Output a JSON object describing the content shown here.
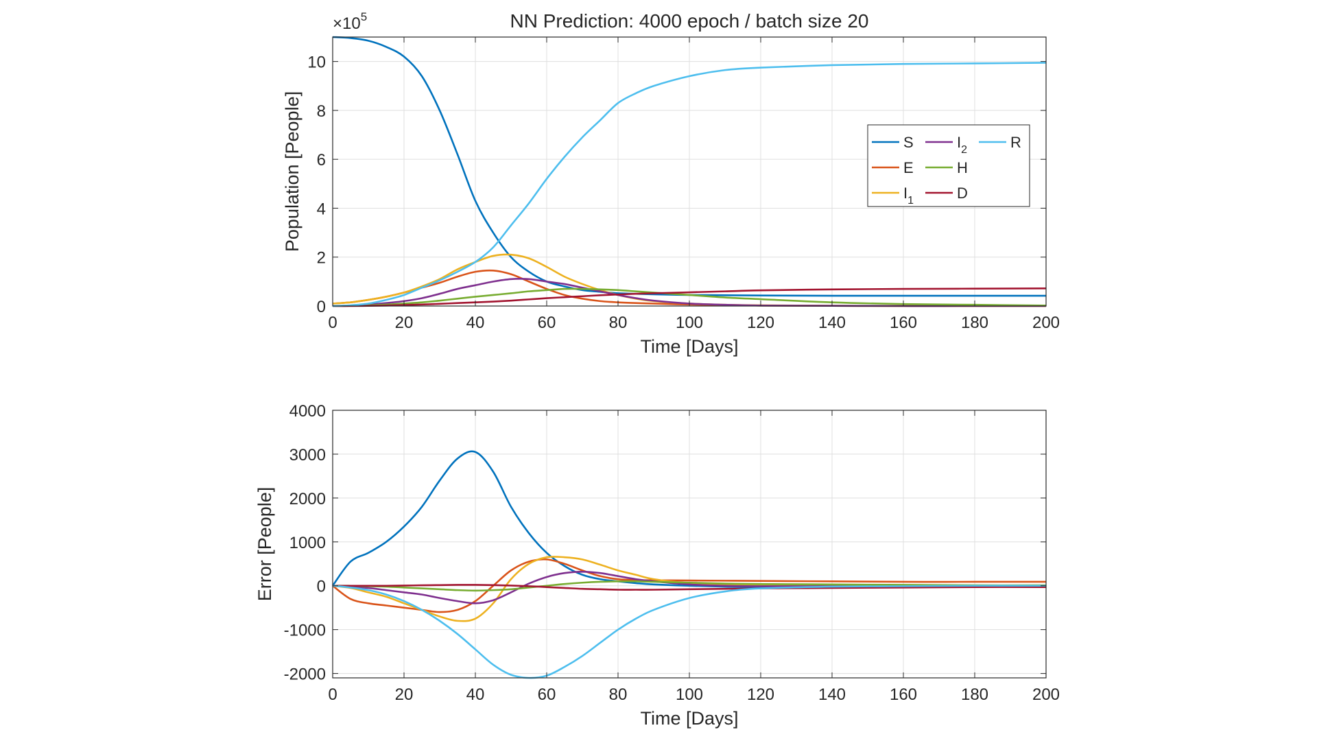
{
  "chart_data": [
    {
      "type": "line",
      "title": "NN Prediction: 4000 epoch / batch size 20",
      "xlabel": "Time [Days]",
      "ylabel": "Population [People]",
      "y_exponent_base": "×10",
      "y_exponent_power": "5",
      "xlim": [
        0,
        200
      ],
      "ylim": [
        0,
        11
      ],
      "xticks": [
        "0",
        "20",
        "40",
        "60",
        "80",
        "100",
        "120",
        "140",
        "160",
        "180",
        "200"
      ],
      "yticks": [
        "0",
        "2",
        "4",
        "6",
        "8",
        "10"
      ],
      "grid": true,
      "legend_position": "upper-right",
      "legend_columns": 3,
      "x": [
        0,
        5,
        10,
        15,
        20,
        25,
        30,
        35,
        40,
        45,
        50,
        55,
        60,
        65,
        70,
        75,
        80,
        85,
        90,
        100,
        110,
        120,
        140,
        160,
        180,
        200
      ],
      "series": [
        {
          "name": "S",
          "color": "#0072BD",
          "values": [
            11.0,
            10.96,
            10.85,
            10.6,
            10.2,
            9.4,
            8.0,
            6.2,
            4.3,
            3.0,
            2.0,
            1.4,
            1.0,
            0.8,
            0.65,
            0.58,
            0.52,
            0.5,
            0.48,
            0.45,
            0.44,
            0.43,
            0.42,
            0.42,
            0.42,
            0.42
          ]
        },
        {
          "name": "E",
          "color": "#D95319",
          "values": [
            0.1,
            0.15,
            0.25,
            0.38,
            0.55,
            0.75,
            0.95,
            1.2,
            1.4,
            1.45,
            1.3,
            1.0,
            0.7,
            0.45,
            0.3,
            0.2,
            0.15,
            0.12,
            0.1,
            0.06,
            0.04,
            0.02,
            0.01,
            0,
            0,
            0
          ]
        },
        {
          "name": "I",
          "name_sub": "1",
          "color": "#EDB120",
          "values": [
            0.1,
            0.15,
            0.25,
            0.38,
            0.55,
            0.8,
            1.1,
            1.5,
            1.8,
            2.05,
            2.1,
            1.95,
            1.6,
            1.2,
            0.9,
            0.65,
            0.45,
            0.3,
            0.2,
            0.1,
            0.05,
            0.03,
            0.01,
            0,
            0,
            0
          ]
        },
        {
          "name": "I",
          "name_sub": "2",
          "color": "#7E2F8E",
          "values": [
            0,
            0.02,
            0.06,
            0.12,
            0.2,
            0.32,
            0.5,
            0.7,
            0.85,
            1.0,
            1.1,
            1.1,
            1.0,
            0.9,
            0.75,
            0.6,
            0.45,
            0.32,
            0.22,
            0.1,
            0.05,
            0.02,
            0.01,
            0,
            0,
            0
          ]
        },
        {
          "name": "H",
          "color": "#77AC30",
          "values": [
            0,
            0.01,
            0.03,
            0.06,
            0.1,
            0.15,
            0.22,
            0.3,
            0.38,
            0.45,
            0.52,
            0.6,
            0.65,
            0.7,
            0.7,
            0.68,
            0.65,
            0.6,
            0.55,
            0.45,
            0.35,
            0.28,
            0.15,
            0.08,
            0.05,
            0.02
          ]
        },
        {
          "name": "D",
          "color": "#A2142F",
          "values": [
            0,
            0,
            0.01,
            0.02,
            0.04,
            0.06,
            0.09,
            0.12,
            0.15,
            0.18,
            0.22,
            0.27,
            0.32,
            0.36,
            0.4,
            0.44,
            0.47,
            0.5,
            0.52,
            0.56,
            0.6,
            0.64,
            0.68,
            0.7,
            0.71,
            0.72
          ]
        },
        {
          "name": "R",
          "color": "#4DBEEE",
          "values": [
            0,
            0.03,
            0.1,
            0.25,
            0.45,
            0.75,
            1.05,
            1.4,
            1.8,
            2.4,
            3.3,
            4.2,
            5.2,
            6.1,
            6.9,
            7.6,
            8.3,
            8.7,
            9.0,
            9.4,
            9.65,
            9.75,
            9.85,
            9.9,
            9.92,
            9.95
          ]
        }
      ]
    },
    {
      "type": "line",
      "xlabel": "Time [Days]",
      "ylabel": "Error [People]",
      "xlim": [
        0,
        200
      ],
      "ylim": [
        -2100,
        4000
      ],
      "xticks": [
        "0",
        "20",
        "40",
        "60",
        "80",
        "100",
        "120",
        "140",
        "160",
        "180",
        "200"
      ],
      "yticks": [
        "-2000",
        "-1000",
        "0",
        "1000",
        "2000",
        "3000",
        "4000"
      ],
      "grid": true,
      "x": [
        0,
        5,
        10,
        15,
        20,
        25,
        30,
        35,
        40,
        45,
        50,
        55,
        60,
        65,
        70,
        75,
        80,
        85,
        90,
        100,
        110,
        120,
        140,
        160,
        180,
        200
      ],
      "series": [
        {
          "name": "S",
          "color": "#0072BD",
          "values": [
            0,
            550,
            750,
            1000,
            1350,
            1800,
            2400,
            2900,
            3050,
            2600,
            1800,
            1200,
            750,
            450,
            250,
            150,
            100,
            60,
            30,
            0,
            -20,
            -30,
            -20,
            -10,
            0,
            0
          ]
        },
        {
          "name": "E",
          "color": "#D95319",
          "values": [
            0,
            -300,
            -400,
            -450,
            -500,
            -550,
            -600,
            -550,
            -350,
            0,
            350,
            550,
            600,
            500,
            350,
            220,
            150,
            130,
            125,
            120,
            115,
            110,
            100,
            90,
            90,
            90
          ]
        },
        {
          "name": "I",
          "name_sub": "1",
          "color": "#EDB120",
          "values": [
            0,
            -50,
            -150,
            -250,
            -400,
            -550,
            -700,
            -800,
            -750,
            -400,
            150,
            500,
            650,
            650,
            600,
            480,
            350,
            250,
            150,
            60,
            20,
            10,
            0,
            0,
            0,
            0
          ]
        },
        {
          "name": "I",
          "name_sub": "2",
          "color": "#7E2F8E",
          "values": [
            0,
            -20,
            -50,
            -100,
            -150,
            -200,
            -280,
            -350,
            -400,
            -330,
            -150,
            50,
            200,
            290,
            320,
            290,
            220,
            150,
            100,
            30,
            0,
            -10,
            -10,
            -10,
            -10,
            -10
          ]
        },
        {
          "name": "H",
          "color": "#77AC30",
          "values": [
            0,
            0,
            -10,
            -20,
            -40,
            -60,
            -80,
            -100,
            -110,
            -100,
            -80,
            -40,
            0,
            40,
            70,
            90,
            100,
            100,
            90,
            70,
            50,
            40,
            30,
            20,
            10,
            10
          ]
        },
        {
          "name": "D",
          "color": "#A2142F",
          "values": [
            0,
            0,
            0,
            0,
            5,
            10,
            15,
            20,
            20,
            15,
            5,
            -10,
            -30,
            -50,
            -70,
            -80,
            -90,
            -90,
            -90,
            -80,
            -70,
            -60,
            -50,
            -40,
            -30,
            -30
          ]
        },
        {
          "name": "R",
          "color": "#4DBEEE",
          "values": [
            0,
            -40,
            -100,
            -200,
            -350,
            -550,
            -800,
            -1100,
            -1450,
            -1800,
            -2030,
            -2100,
            -2050,
            -1850,
            -1600,
            -1300,
            -1000,
            -750,
            -550,
            -280,
            -130,
            -60,
            -20,
            -10,
            0,
            0
          ]
        }
      ]
    }
  ]
}
